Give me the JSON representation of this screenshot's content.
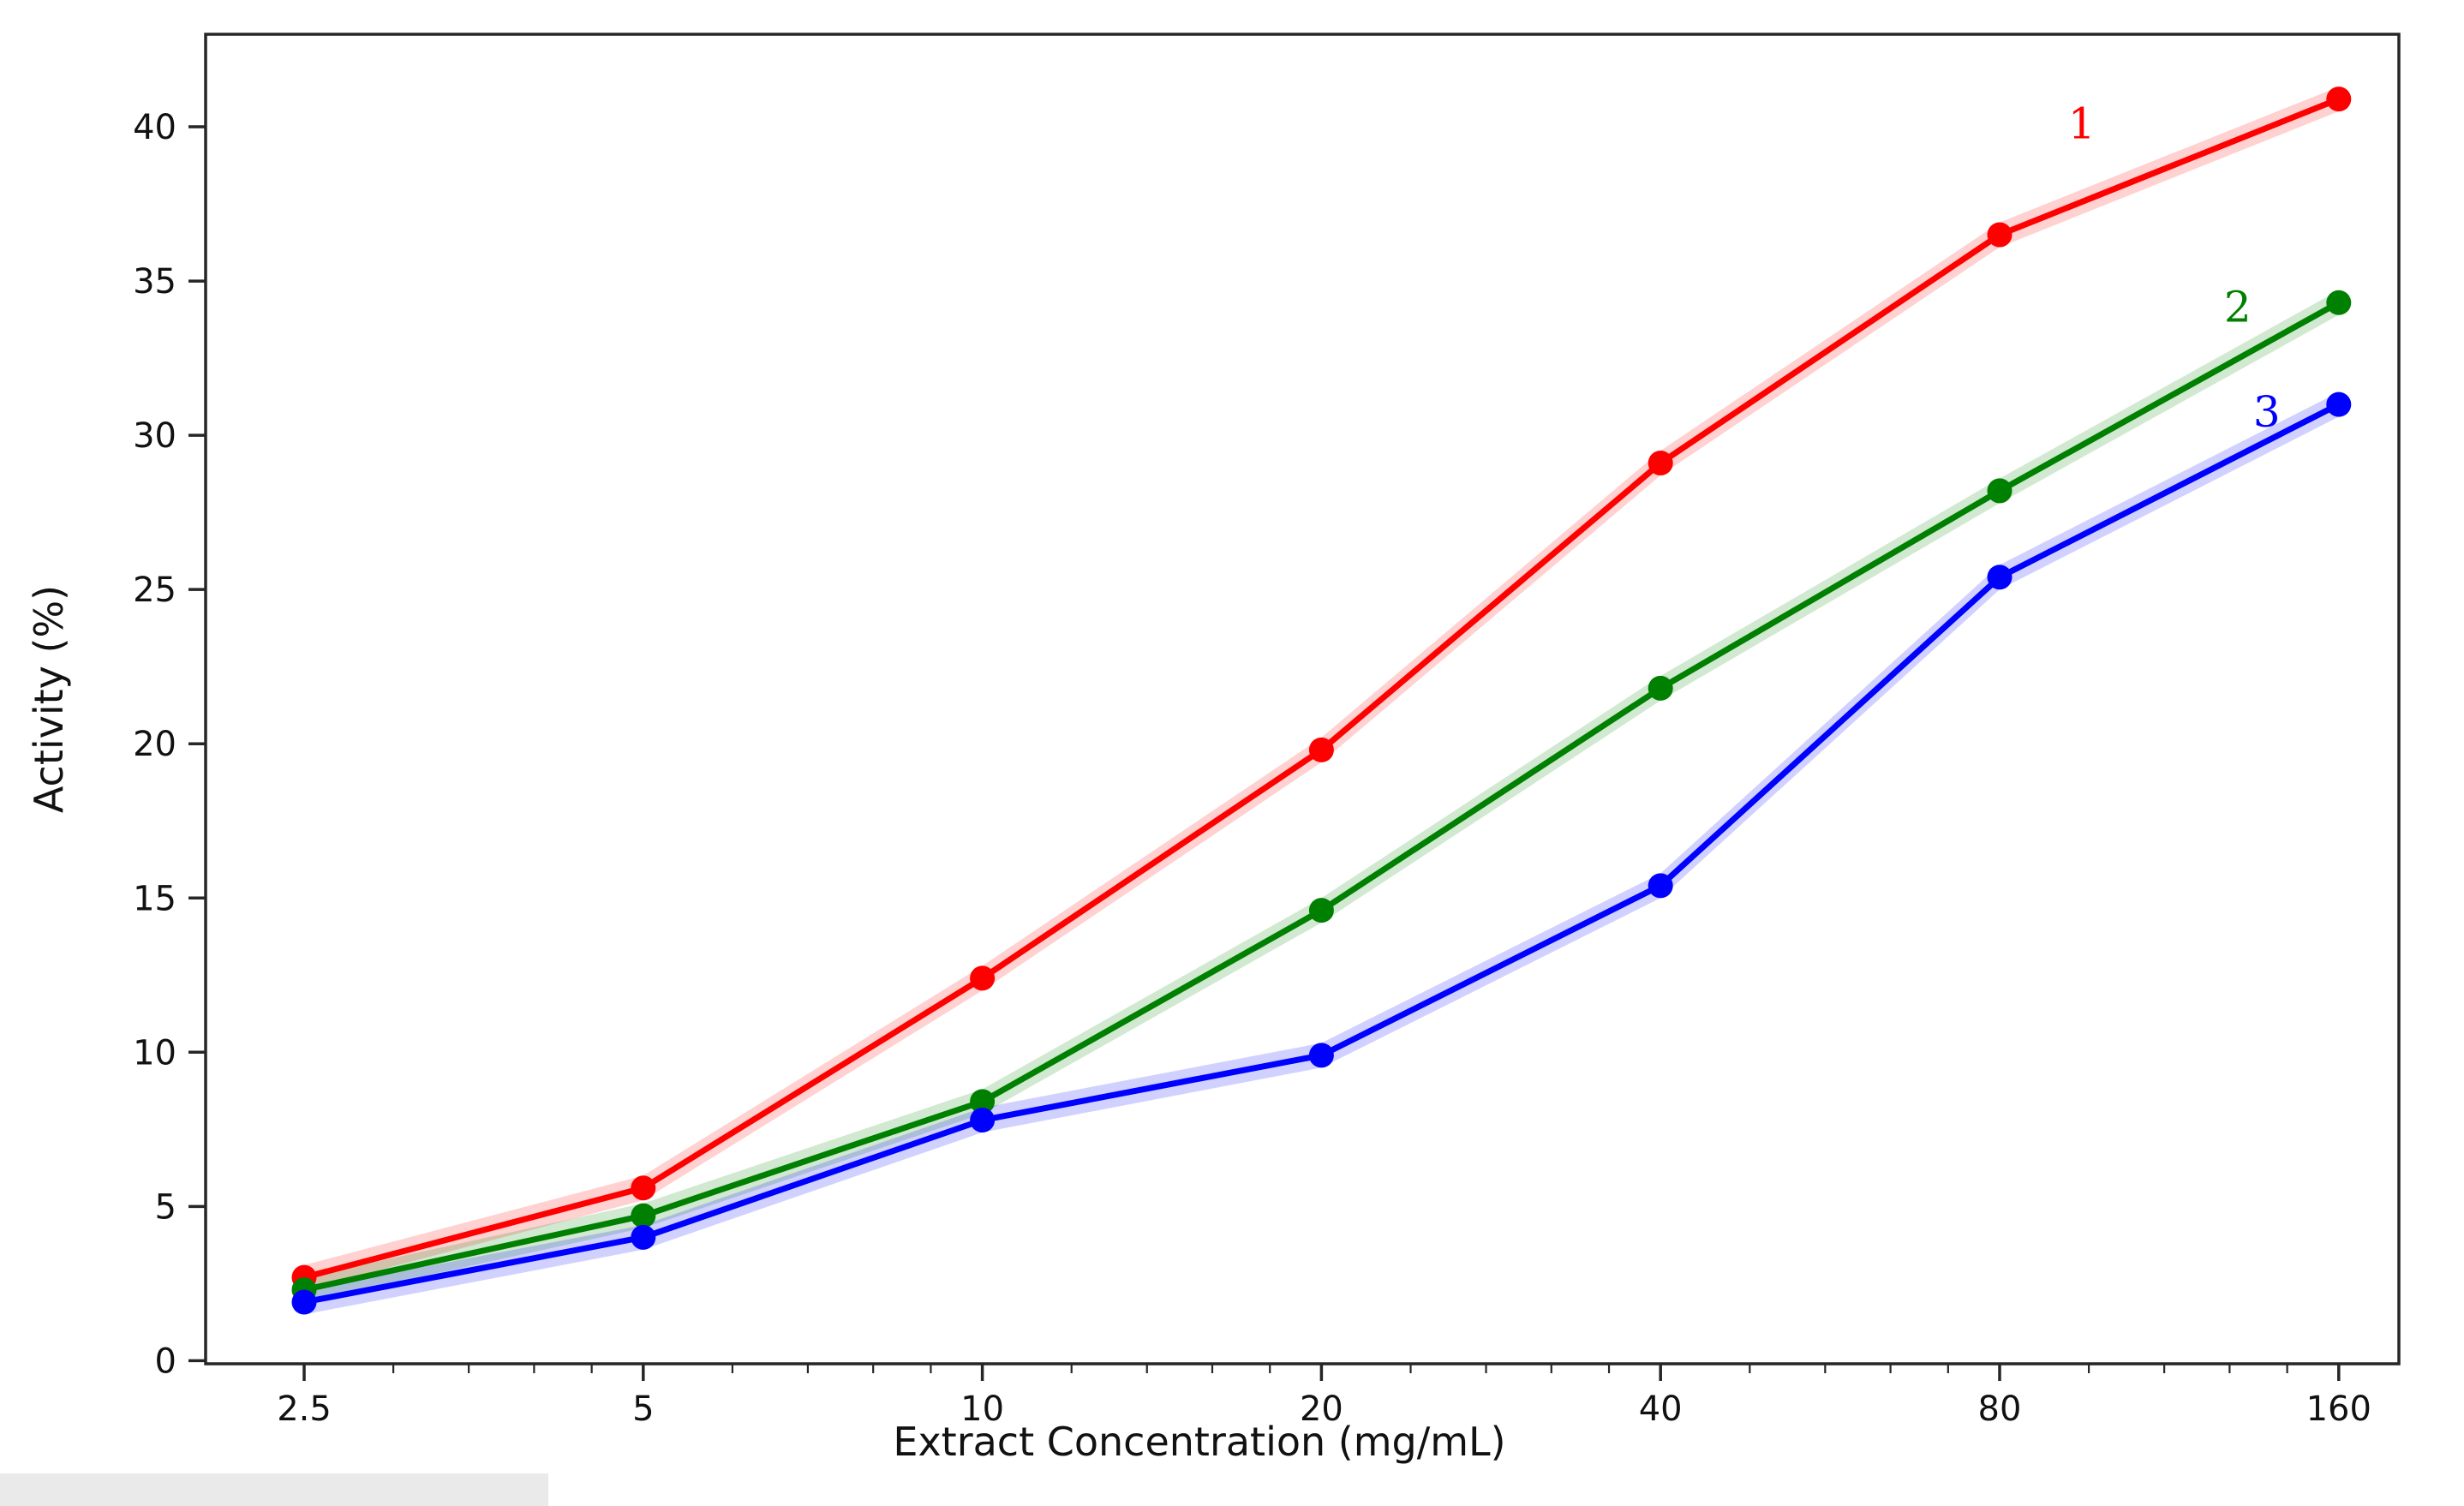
{
  "chart_data": {
    "type": "line",
    "title": "",
    "xlabel": "Extract Concentration (mg/mL)",
    "ylabel": "Activity (%)",
    "x_scale": "log2",
    "x": [
      2.5,
      5,
      10,
      20,
      40,
      80,
      160
    ],
    "xtick_labels": [
      "2.5",
      "5",
      "10",
      "20",
      "40",
      "80",
      "160"
    ],
    "minor_xticks": [
      3,
      3.5,
      4,
      4.5,
      6,
      7,
      8,
      9,
      12,
      14,
      16,
      18,
      24,
      28,
      32,
      36,
      48,
      56,
      64,
      72,
      96,
      112,
      128,
      144
    ],
    "yticks": [
      0,
      5,
      10,
      15,
      20,
      25,
      30,
      35,
      40
    ],
    "ytick_labels": [
      "0",
      "5",
      "10",
      "15",
      "20",
      "25",
      "30",
      "35",
      "40"
    ],
    "ylim": [
      -0.1,
      43.0
    ],
    "xlim": [
      2.05,
      180.6
    ],
    "grid": false,
    "legend_position": "inline-end-labels",
    "band_halfwidth_units": 0.4,
    "series": [
      {
        "name": "1",
        "color": "#ff0000",
        "values": [
          2.7,
          5.6,
          12.4,
          19.8,
          29.1,
          36.5,
          40.9
        ],
        "label_offset": [
          -300,
          30
        ]
      },
      {
        "name": "2",
        "color": "#008000",
        "values": [
          2.3,
          4.7,
          8.4,
          14.6,
          21.8,
          28.2,
          34.3
        ],
        "label_offset": [
          -118,
          6
        ]
      },
      {
        "name": "3",
        "color": "#0000ff",
        "values": [
          1.9,
          4.0,
          7.8,
          9.9,
          15.4,
          25.4,
          31.0
        ],
        "label_offset": [
          -84,
          10
        ]
      }
    ],
    "axis_color": "#262626",
    "text_color": "#111111"
  }
}
